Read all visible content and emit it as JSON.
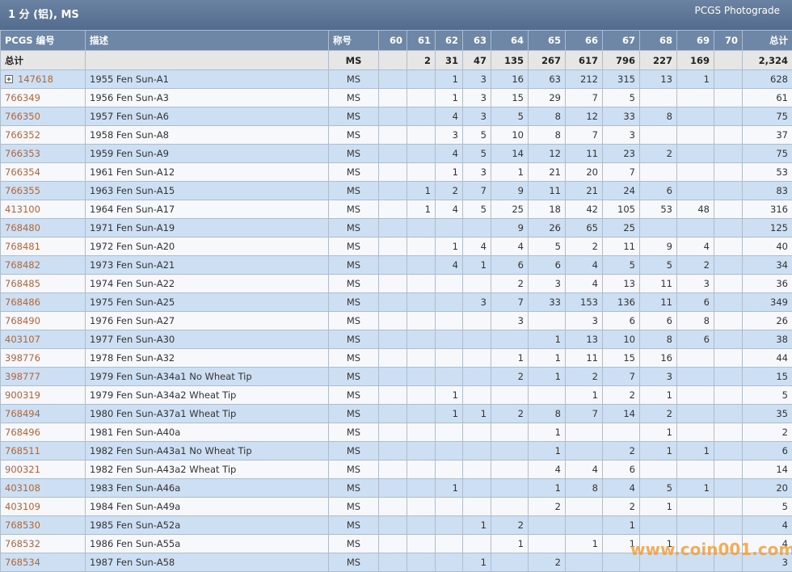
{
  "header": {
    "title": "1 分 (铝), MS",
    "subtitle": "PCGS Photograde"
  },
  "table": {
    "columns": [
      "PCGS 编号",
      "描述",
      "称号",
      "60",
      "61",
      "62",
      "63",
      "64",
      "65",
      "66",
      "67",
      "68",
      "69",
      "70",
      "总计"
    ],
    "total_row": [
      "总计",
      null,
      "MS",
      null,
      "2",
      "31",
      "47",
      "135",
      "267",
      "617",
      "796",
      "227",
      "169",
      null,
      "2,324"
    ],
    "rows": [
      [
        "147618",
        "1955 Fen Sun-A1",
        "MS",
        null,
        null,
        "1",
        "3",
        "16",
        "63",
        "212",
        "315",
        "13",
        "1",
        null,
        "628"
      ],
      [
        "766349",
        "1956 Fen Sun-A3",
        "MS",
        null,
        null,
        "1",
        "3",
        "15",
        "29",
        "7",
        "5",
        null,
        null,
        null,
        "61"
      ],
      [
        "766350",
        "1957 Fen Sun-A6",
        "MS",
        null,
        null,
        "4",
        "3",
        "5",
        "8",
        "12",
        "33",
        "8",
        null,
        null,
        "75"
      ],
      [
        "766352",
        "1958 Fen Sun-A8",
        "MS",
        null,
        null,
        "3",
        "5",
        "10",
        "8",
        "7",
        "3",
        null,
        null,
        null,
        "37"
      ],
      [
        "766353",
        "1959 Fen Sun-A9",
        "MS",
        null,
        null,
        "4",
        "5",
        "14",
        "12",
        "11",
        "23",
        "2",
        null,
        null,
        "75"
      ],
      [
        "766354",
        "1961 Fen Sun-A12",
        "MS",
        null,
        null,
        "1",
        "3",
        "1",
        "21",
        "20",
        "7",
        null,
        null,
        null,
        "53"
      ],
      [
        "766355",
        "1963 Fen Sun-A15",
        "MS",
        null,
        "1",
        "2",
        "7",
        "9",
        "11",
        "21",
        "24",
        "6",
        null,
        null,
        "83"
      ],
      [
        "413100",
        "1964 Fen Sun-A17",
        "MS",
        null,
        "1",
        "4",
        "5",
        "25",
        "18",
        "42",
        "105",
        "53",
        "48",
        null,
        "316"
      ],
      [
        "768480",
        "1971 Fen Sun-A19",
        "MS",
        null,
        null,
        null,
        null,
        "9",
        "26",
        "65",
        "25",
        null,
        null,
        null,
        "125"
      ],
      [
        "768481",
        "1972 Fen Sun-A20",
        "MS",
        null,
        null,
        "1",
        "4",
        "4",
        "5",
        "2",
        "11",
        "9",
        "4",
        null,
        "40"
      ],
      [
        "768482",
        "1973 Fen Sun-A21",
        "MS",
        null,
        null,
        "4",
        "1",
        "6",
        "6",
        "4",
        "5",
        "5",
        "2",
        null,
        "34"
      ],
      [
        "768485",
        "1974 Fen Sun-A22",
        "MS",
        null,
        null,
        null,
        null,
        "2",
        "3",
        "4",
        "13",
        "11",
        "3",
        null,
        "36"
      ],
      [
        "768486",
        "1975 Fen Sun-A25",
        "MS",
        null,
        null,
        null,
        "3",
        "7",
        "33",
        "153",
        "136",
        "11",
        "6",
        null,
        "349"
      ],
      [
        "768490",
        "1976 Fen Sun-A27",
        "MS",
        null,
        null,
        null,
        null,
        "3",
        null,
        "3",
        "6",
        "6",
        "8",
        null,
        "26"
      ],
      [
        "403107",
        "1977 Fen Sun-A30",
        "MS",
        null,
        null,
        null,
        null,
        null,
        "1",
        "13",
        "10",
        "8",
        "6",
        null,
        "38"
      ],
      [
        "398776",
        "1978 Fen Sun-A32",
        "MS",
        null,
        null,
        null,
        null,
        "1",
        "1",
        "11",
        "15",
        "16",
        null,
        null,
        "44"
      ],
      [
        "398777",
        "1979 Fen Sun-A34a1 No Wheat Tip",
        "MS",
        null,
        null,
        null,
        null,
        "2",
        "1",
        "2",
        "7",
        "3",
        null,
        null,
        "15"
      ],
      [
        "900319",
        "1979 Fen Sun-A34a2 Wheat Tip",
        "MS",
        null,
        null,
        "1",
        null,
        null,
        null,
        "1",
        "2",
        "1",
        null,
        null,
        "5"
      ],
      [
        "768494",
        "1980 Fen Sun-A37a1 Wheat Tip",
        "MS",
        null,
        null,
        "1",
        "1",
        "2",
        "8",
        "7",
        "14",
        "2",
        null,
        null,
        "35"
      ],
      [
        "768496",
        "1981 Fen Sun-A40a",
        "MS",
        null,
        null,
        null,
        null,
        null,
        "1",
        null,
        null,
        "1",
        null,
        null,
        "2"
      ],
      [
        "768511",
        "1982 Fen Sun-A43a1 No Wheat Tip",
        "MS",
        null,
        null,
        null,
        null,
        null,
        "1",
        null,
        "2",
        "1",
        "1",
        null,
        "6"
      ],
      [
        "900321",
        "1982 Fen Sun-A43a2 Wheat Tip",
        "MS",
        null,
        null,
        null,
        null,
        null,
        "4",
        "4",
        "6",
        null,
        null,
        null,
        "14"
      ],
      [
        "403108",
        "1983 Fen Sun-A46a",
        "MS",
        null,
        null,
        "1",
        null,
        null,
        "1",
        "8",
        "4",
        "5",
        "1",
        null,
        "20"
      ],
      [
        "403109",
        "1984 Fen Sun-A49a",
        "MS",
        null,
        null,
        null,
        null,
        null,
        "2",
        null,
        "2",
        "1",
        null,
        null,
        "5"
      ],
      [
        "768530",
        "1985 Fen Sun-A52a",
        "MS",
        null,
        null,
        null,
        "1",
        "2",
        null,
        null,
        "1",
        null,
        null,
        null,
        "4"
      ],
      [
        "768532",
        "1986 Fen Sun-A55a",
        "MS",
        null,
        null,
        null,
        null,
        "1",
        null,
        "1",
        "1",
        "1",
        null,
        null,
        "4"
      ],
      [
        "768534",
        "1987 Fen Sun-A58",
        "MS",
        null,
        null,
        null,
        "1",
        null,
        "2",
        null,
        null,
        null,
        null,
        null,
        "3"
      ]
    ]
  },
  "watermark": "www.coin001.com"
}
